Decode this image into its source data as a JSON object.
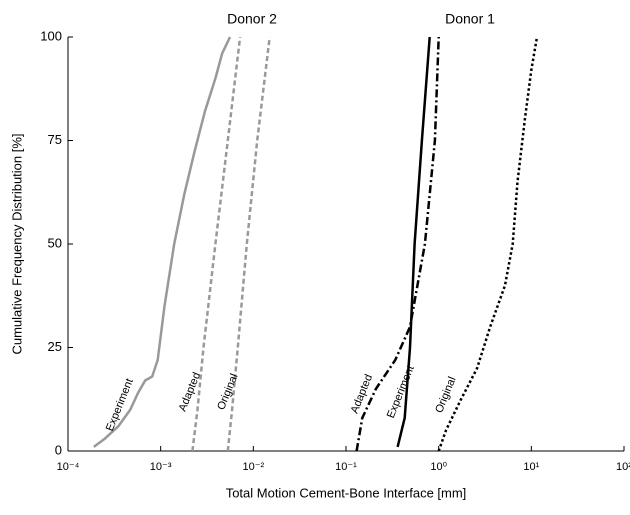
{
  "chart_data": {
    "type": "line",
    "xlabel": "Total Motion Cement-Bone Interface [mm]",
    "ylabel": "Cumulative Frequency Distribution [%]",
    "annotations": [
      "Donor 2",
      "Donor 1"
    ],
    "xscale": "log",
    "xlim": [
      0.0001,
      100
    ],
    "ylim": [
      0,
      100
    ],
    "xticks": [
      {
        "value": 0.0001,
        "label": "10⁻⁴"
      },
      {
        "value": 0.001,
        "label": "10⁻³"
      },
      {
        "value": 0.01,
        "label": "10⁻²"
      },
      {
        "value": 0.1,
        "label": "10⁻¹"
      },
      {
        "value": 1,
        "label": "10⁰"
      },
      {
        "value": 10,
        "label": "10¹"
      },
      {
        "value": 100,
        "label": "10²"
      }
    ],
    "yticks": [
      0,
      25,
      50,
      75,
      100
    ],
    "series": [
      {
        "name": "Experiment",
        "color": "#999999",
        "dash": "solid",
        "x": [
          0.00019,
          0.00025,
          0.00035,
          0.00047,
          0.00057,
          0.00068,
          0.00081,
          0.00093,
          0.0011,
          0.0014,
          0.0018,
          0.0023,
          0.003,
          0.0039,
          0.0046,
          0.0056
        ],
        "values": [
          1,
          3,
          6,
          10,
          14,
          17,
          18,
          22,
          35,
          50,
          62,
          72,
          82,
          90,
          96,
          100
        ]
      },
      {
        "name": "Adapted",
        "color": "#999999",
        "dash": "dashed",
        "x": [
          0.0022,
          0.0025,
          0.0029,
          0.0039,
          0.0053,
          0.0072
        ],
        "values": [
          0,
          10,
          25,
          50,
          75,
          100
        ]
      },
      {
        "name": "Original",
        "color": "#999999",
        "dash": "dashed",
        "x": [
          0.0053,
          0.0059,
          0.0068,
          0.0085,
          0.011,
          0.015
        ],
        "values": [
          0,
          10,
          25,
          50,
          75,
          100
        ]
      },
      {
        "name": "Adapted",
        "color": "#000000",
        "dash": "dashdot",
        "x": [
          0.13,
          0.15,
          0.21,
          0.34,
          0.49,
          0.71,
          0.91,
          1.0
        ],
        "values": [
          0,
          8,
          15,
          22,
          30,
          50,
          75,
          100
        ]
      },
      {
        "name": "Experiment",
        "color": "#000000",
        "dash": "solid",
        "x": [
          0.36,
          0.43,
          0.49,
          0.55,
          0.66,
          0.8
        ],
        "values": [
          1,
          8,
          25,
          50,
          75,
          100
        ]
      },
      {
        "name": "Original",
        "color": "#000000",
        "dash": "dotted",
        "x": [
          1.0,
          1.2,
          1.7,
          2.6,
          3.6,
          5.2,
          6.3,
          7.1,
          8.5,
          10,
          11.5
        ],
        "values": [
          0,
          5,
          12,
          20,
          30,
          40,
          50,
          65,
          80,
          92,
          100
        ]
      }
    ]
  }
}
